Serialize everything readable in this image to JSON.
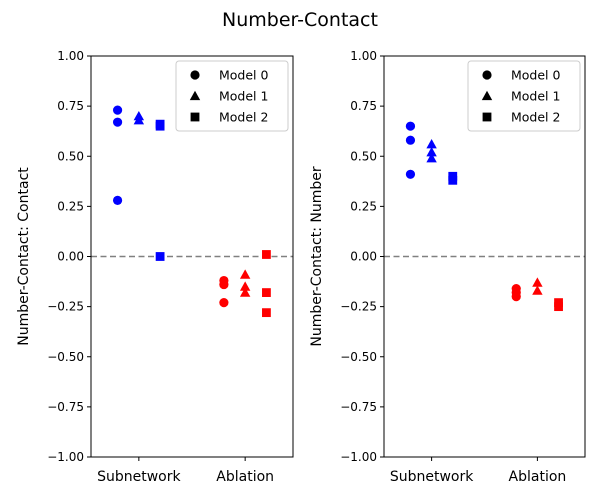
{
  "figure": {
    "suptitle": "Number-Contact"
  },
  "colors": {
    "Subnetwork": "#0000ff",
    "Ablation": "#ff0000",
    "zero_line": "#808080"
  },
  "chart_data": [
    {
      "type": "scatter",
      "ylabel": "Number-Contact: Contact",
      "ylim": [
        -1.0,
        1.0
      ],
      "yticks": [
        -1.0,
        -0.75,
        -0.5,
        -0.25,
        0.0,
        0.25,
        0.5,
        0.75,
        1.0
      ],
      "ytick_labels": [
        "−1.00",
        "−0.75",
        "−0.50",
        "−0.25",
        "0.00",
        "0.25",
        "0.50",
        "0.75",
        "1.00"
      ],
      "categories": [
        "Subnetwork",
        "Ablation"
      ],
      "reference_line": 0.0,
      "legend": {
        "position": "top-right",
        "entries": [
          "Model 0",
          "Model 1",
          "Model 2"
        ]
      },
      "series": [
        {
          "name": "Model 0",
          "marker": "circle",
          "Subnetwork": [
            0.73,
            0.67,
            0.28
          ],
          "Ablation": [
            -0.12,
            -0.14,
            -0.23
          ]
        },
        {
          "name": "Model 1",
          "marker": "triangle",
          "Subnetwork": [
            0.7,
            0.68
          ],
          "Ablation": [
            -0.09,
            -0.15,
            -0.18
          ]
        },
        {
          "name": "Model 2",
          "marker": "square",
          "Subnetwork": [
            0.66,
            0.65,
            0.0
          ],
          "Ablation": [
            0.01,
            -0.18,
            -0.28
          ]
        }
      ]
    },
    {
      "type": "scatter",
      "ylabel": "Number-Contact: Number",
      "ylim": [
        -1.0,
        1.0
      ],
      "yticks": [
        -1.0,
        -0.75,
        -0.5,
        -0.25,
        0.0,
        0.25,
        0.5,
        0.75,
        1.0
      ],
      "ytick_labels": [
        "−1.00",
        "−0.75",
        "−0.50",
        "−0.25",
        "0.00",
        "0.25",
        "0.50",
        "0.75",
        "1.00"
      ],
      "categories": [
        "Subnetwork",
        "Ablation"
      ],
      "reference_line": 0.0,
      "legend": {
        "position": "top-right",
        "entries": [
          "Model 0",
          "Model 1",
          "Model 2"
        ]
      },
      "series": [
        {
          "name": "Model 0",
          "marker": "circle",
          "Subnetwork": [
            0.65,
            0.58,
            0.41
          ],
          "Ablation": [
            -0.16,
            -0.18,
            -0.2
          ]
        },
        {
          "name": "Model 1",
          "marker": "triangle",
          "Subnetwork": [
            0.56,
            0.52,
            0.49
          ],
          "Ablation": [
            -0.13,
            -0.17
          ]
        },
        {
          "name": "Model 2",
          "marker": "square",
          "Subnetwork": [
            0.4,
            0.38
          ],
          "Ablation": [
            -0.23,
            -0.25
          ]
        }
      ]
    }
  ]
}
